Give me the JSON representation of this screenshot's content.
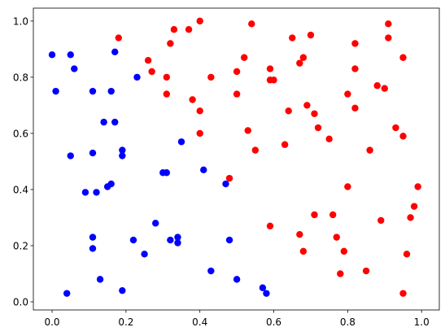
{
  "chart_data": {
    "type": "scatter",
    "xlim": [
      -0.0507,
      1.048
    ],
    "ylim": [
      -0.029,
      1.046
    ],
    "xticks": [
      {
        "value": 0,
        "label": "0.0"
      },
      {
        "value": 0.2,
        "label": "0.2"
      },
      {
        "value": 0.4,
        "label": "0.4"
      },
      {
        "value": 0.6,
        "label": "0.6"
      },
      {
        "value": 0.8,
        "label": "0.8"
      },
      {
        "value": 1,
        "label": "1.0"
      }
    ],
    "yticks": [
      {
        "value": 0,
        "label": "0.0"
      },
      {
        "value": 0.2,
        "label": "0.2"
      },
      {
        "value": 0.4,
        "label": "0.4"
      },
      {
        "value": 0.6,
        "label": "0.6"
      },
      {
        "value": 0.8,
        "label": "0.8"
      },
      {
        "value": 1,
        "label": "1.0"
      }
    ],
    "grid": false,
    "series": [
      {
        "color": "#0000ff",
        "x": [
          0.0,
          0.01,
          0.05,
          0.06,
          0.05,
          0.11,
          0.17,
          0.16,
          0.23,
          0.14,
          0.17,
          0.19,
          0.19,
          0.11,
          0.35,
          0.3,
          0.31,
          0.41,
          0.47,
          0.16,
          0.15,
          0.12,
          0.09,
          0.28,
          0.11,
          0.11,
          0.22,
          0.25,
          0.32,
          0.34,
          0.34,
          0.48,
          0.43,
          0.5,
          0.13,
          0.19,
          0.04,
          0.57,
          0.58
        ],
        "values": [
          0.88,
          0.75,
          0.88,
          0.83,
          0.52,
          0.75,
          0.89,
          0.75,
          0.8,
          0.64,
          0.64,
          0.54,
          0.52,
          0.53,
          0.57,
          0.46,
          0.46,
          0.47,
          0.42,
          0.42,
          0.41,
          0.39,
          0.39,
          0.28,
          0.23,
          0.19,
          0.22,
          0.17,
          0.22,
          0.23,
          0.21,
          0.22,
          0.11,
          0.08,
          0.08,
          0.04,
          0.03,
          0.05,
          0.03
        ]
      },
      {
        "color": "#ff0000",
        "x": [
          0.18,
          0.26,
          0.27,
          0.31,
          0.33,
          0.32,
          0.37,
          0.4,
          0.31,
          0.38,
          0.4,
          0.4,
          0.43,
          0.5,
          0.5,
          0.52,
          0.54,
          0.53,
          0.55,
          0.48,
          0.59,
          0.59,
          0.6,
          0.65,
          0.67,
          0.68,
          0.7,
          0.64,
          0.63,
          0.69,
          0.71,
          0.72,
          0.75,
          0.59,
          0.71,
          0.67,
          0.68,
          0.76,
          0.77,
          0.79,
          0.78,
          0.8,
          0.82,
          0.82,
          0.82,
          0.8,
          0.88,
          0.9,
          0.91,
          0.91,
          0.95,
          0.86,
          0.93,
          0.95,
          0.89,
          0.85,
          0.95,
          0.96,
          0.97,
          0.98,
          0.99
        ],
        "values": [
          0.94,
          0.86,
          0.82,
          0.8,
          0.97,
          0.92,
          0.97,
          1.0,
          0.74,
          0.72,
          0.68,
          0.6,
          0.8,
          0.82,
          0.74,
          0.87,
          0.99,
          0.61,
          0.54,
          0.44,
          0.83,
          0.79,
          0.79,
          0.94,
          0.85,
          0.87,
          0.95,
          0.68,
          0.56,
          0.7,
          0.67,
          0.62,
          0.58,
          0.27,
          0.31,
          0.24,
          0.18,
          0.31,
          0.23,
          0.18,
          0.1,
          0.74,
          0.92,
          0.83,
          0.69,
          0.41,
          0.77,
          0.76,
          0.99,
          0.94,
          0.87,
          0.54,
          0.62,
          0.59,
          0.29,
          0.11,
          0.03,
          0.17,
          0.3,
          0.34,
          0.41
        ]
      }
    ]
  }
}
